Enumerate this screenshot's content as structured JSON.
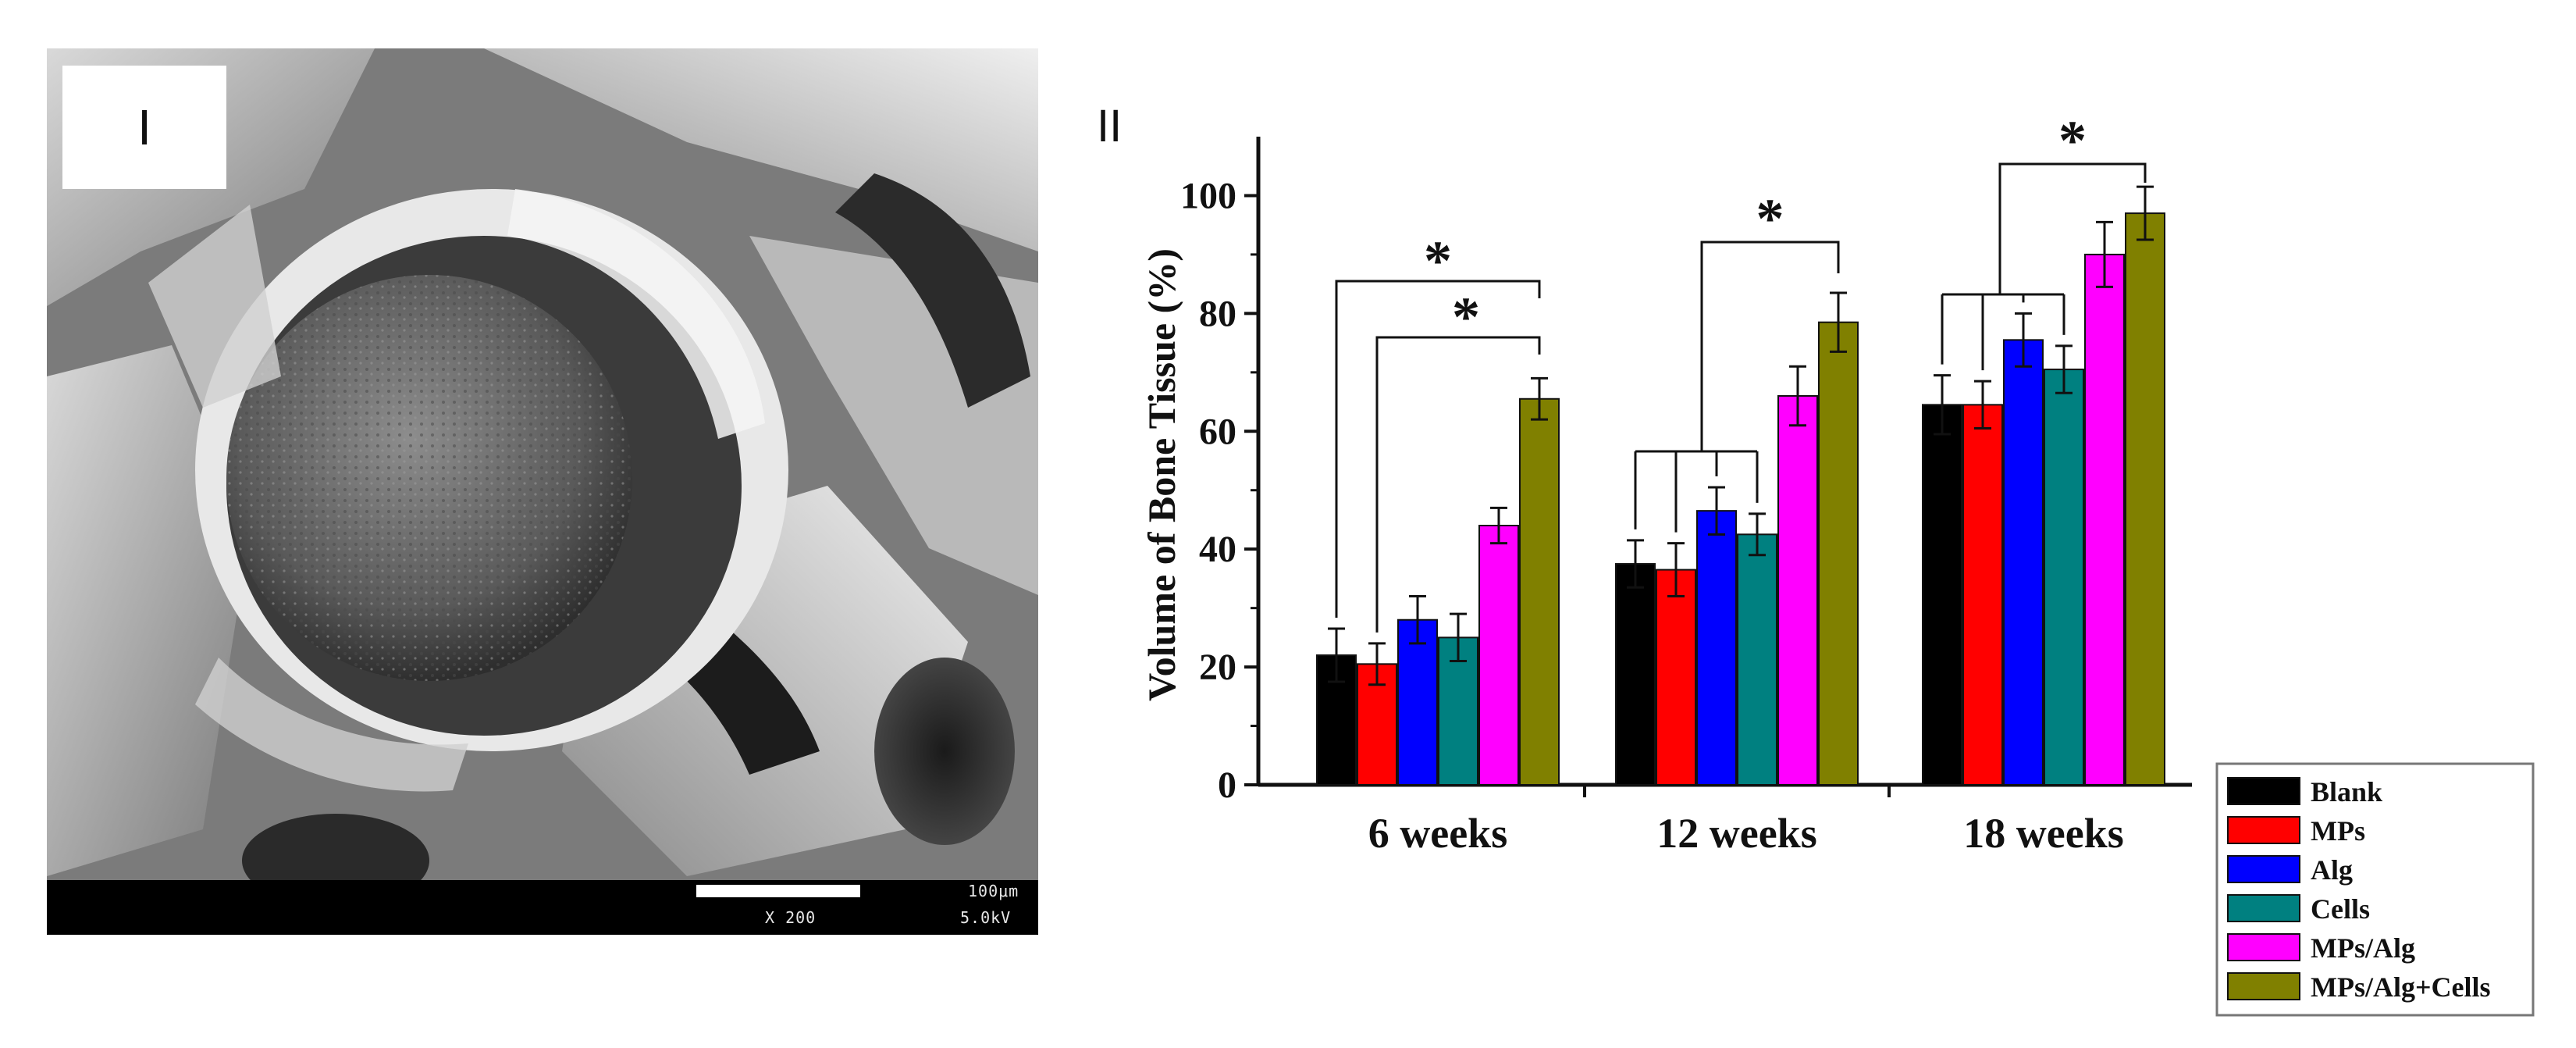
{
  "panel_i": {
    "label": "I",
    "scale_text": "100μm",
    "mag_text": "X 200",
    "kv_text": "5.0kV"
  },
  "panel_ii": {
    "label": "II"
  },
  "chart_data": {
    "type": "bar",
    "title": "",
    "xlabel": "",
    "ylabel": "Volume of Bone Tissue (%)",
    "ylim": [
      0,
      110
    ],
    "yticks": [
      0,
      20,
      40,
      60,
      80,
      100
    ],
    "categories": [
      "6 weeks",
      "12 weeks",
      "18 weeks"
    ],
    "series": [
      {
        "name": "Blank",
        "color": "#000000",
        "values": [
          22,
          37.5,
          64.5
        ],
        "errors": [
          4.5,
          4,
          5
        ]
      },
      {
        "name": "MPs",
        "color": "#ff0000",
        "values": [
          20.5,
          36.5,
          64.5
        ],
        "errors": [
          3.5,
          4.5,
          4
        ]
      },
      {
        "name": "Alg",
        "color": "#0000ff",
        "values": [
          28,
          46.5,
          75.5
        ],
        "errors": [
          4,
          4,
          4.5
        ]
      },
      {
        "name": "Cells",
        "color": "#008080",
        "values": [
          25,
          42.5,
          70.5
        ],
        "errors": [
          4,
          3.5,
          4
        ]
      },
      {
        "name": "MPs/Alg",
        "color": "#ff00ff",
        "values": [
          44,
          66,
          90
        ],
        "errors": [
          3,
          5,
          5.5
        ]
      },
      {
        "name": "MPs/Alg+Cells",
        "color": "#808000",
        "values": [
          65.5,
          78.5,
          97
        ],
        "errors": [
          3.5,
          5,
          4.5
        ]
      }
    ],
    "significance_marker": "*",
    "legend_position": "bottom-right"
  }
}
